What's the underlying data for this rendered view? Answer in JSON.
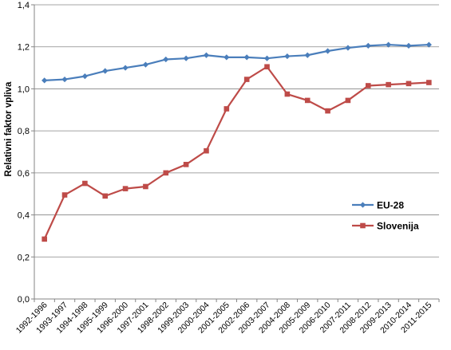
{
  "chart_data": {
    "type": "line",
    "title": "",
    "xlabel": "",
    "ylabel": "Relativni faktor vpliva",
    "ylim": [
      0,
      1.4
    ],
    "yticks": [
      "0,0",
      "0,2",
      "0,4",
      "0,6",
      "0,8",
      "1,0",
      "1,2",
      "1,4"
    ],
    "grid": true,
    "legend_position": "right",
    "categories": [
      "1992-1996",
      "1993-1997",
      "1994-1998",
      "1995-1999",
      "1996-2000",
      "1997-2001",
      "1998-2002",
      "1999-2003",
      "2000-2004",
      "2001-2005",
      "2002-2006",
      "2003-2007",
      "2004-2008",
      "2005-2009",
      "2006-2010",
      "2007-2011",
      "2008-2012",
      "2009-2013",
      "2010-2014",
      "2011-2015"
    ],
    "series": [
      {
        "name": "EU-28",
        "color": "#4a7ebb",
        "marker": "diamond",
        "values": [
          1.04,
          1.045,
          1.06,
          1.085,
          1.1,
          1.115,
          1.14,
          1.145,
          1.16,
          1.15,
          1.15,
          1.145,
          1.155,
          1.16,
          1.18,
          1.195,
          1.205,
          1.21,
          1.205,
          1.21
        ]
      },
      {
        "name": "Slovenija",
        "color": "#be4b48",
        "marker": "square",
        "values": [
          0.285,
          0.495,
          0.55,
          0.49,
          0.525,
          0.535,
          0.6,
          0.64,
          0.705,
          0.905,
          1.045,
          1.105,
          0.975,
          0.945,
          0.895,
          0.945,
          1.015,
          1.02,
          1.025,
          1.03
        ]
      }
    ]
  }
}
